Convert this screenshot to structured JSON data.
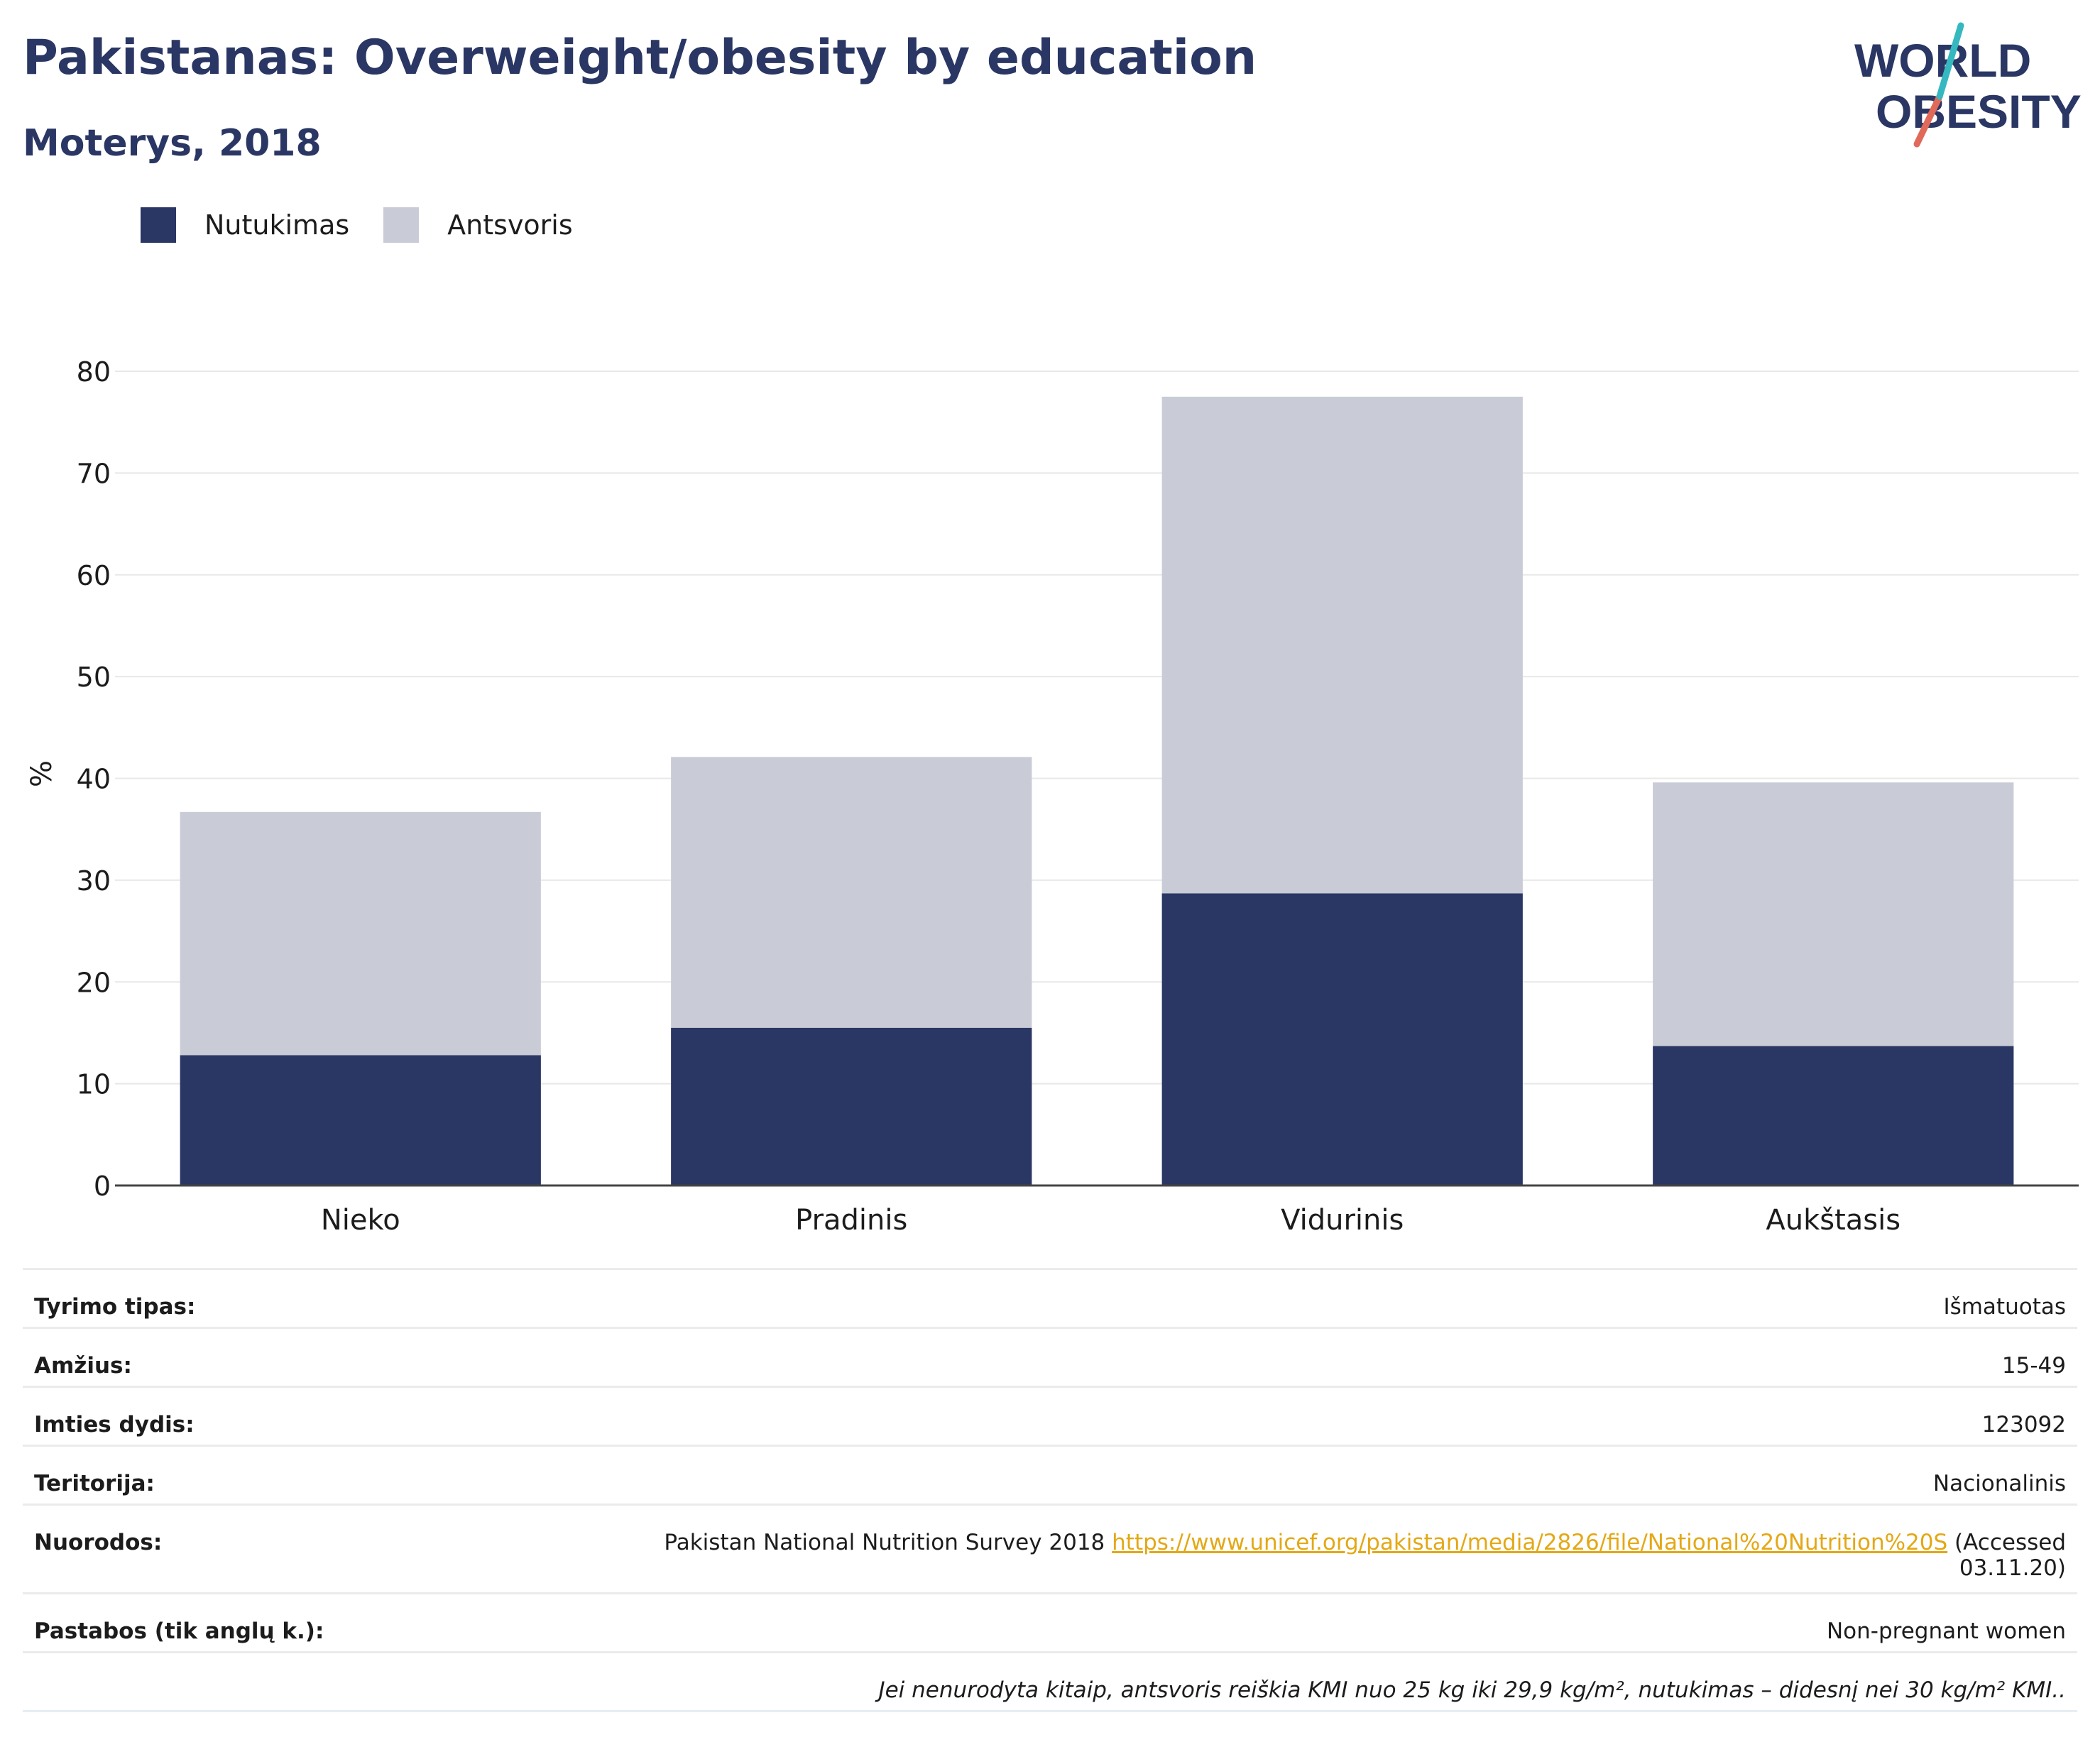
{
  "header": {
    "title": "Pakistanas: Overweight/obesity by education",
    "subtitle": "Moterys, 2018"
  },
  "logo": {
    "line1": "WORLD",
    "line2": "OBESITY",
    "colors": {
      "text": "#2a3663",
      "slash_teal": "#35b8bf",
      "slash_red": "#e0695a"
    }
  },
  "legend": {
    "items": [
      {
        "label": "Nutukimas",
        "color": "#2a3663"
      },
      {
        "label": "Antsvoris",
        "color": "#c9cbd6"
      }
    ]
  },
  "chart_data": {
    "type": "bar",
    "stacked": true,
    "categories": [
      "Nieko",
      "Pradinis",
      "Vidurinis",
      "Aukštasis"
    ],
    "series": [
      {
        "name": "Nutukimas",
        "values": [
          12.8,
          15.5,
          28.7,
          13.7
        ],
        "color": "#2a3663"
      },
      {
        "name": "Antsvoris",
        "values": [
          23.9,
          26.6,
          48.8,
          25.9
        ],
        "color": "#c9cbd6"
      }
    ],
    "ylabel": "%",
    "ylim": [
      0,
      80
    ],
    "yticks": [
      "0",
      "10",
      "20",
      "30",
      "40",
      "50",
      "60",
      "70",
      "80"
    ],
    "grid": true,
    "legend_position": "top-left"
  },
  "details": {
    "rows": [
      {
        "key": "Tyrimo tipas:",
        "value": "Išmatuotas"
      },
      {
        "key": "Amžius:",
        "value": "15-49"
      },
      {
        "key": "Imties dydis:",
        "value": "123092"
      },
      {
        "key": "Teritorija:",
        "value": "Nacionalinis"
      }
    ],
    "references": {
      "key": "Nuorodos:",
      "text_before": "Pakistan National Nutrition Survey 2018 ",
      "link": "https://www.unicef.org/pakistan/media/2826/file/National%20Nutrition%20S",
      "text_after": " (Accessed",
      "text_line2": "03.11.20)"
    },
    "notes": {
      "key": "Pastabos (tik anglų k.):",
      "value": "Non-pregnant women"
    },
    "footnote": "Jei nenurodyta kitaip, antsvoris reiškia KMI nuo 25 kg iki 29,9 kg/m², nutukimas – didesnį nei 30 kg/m² KMI.."
  }
}
